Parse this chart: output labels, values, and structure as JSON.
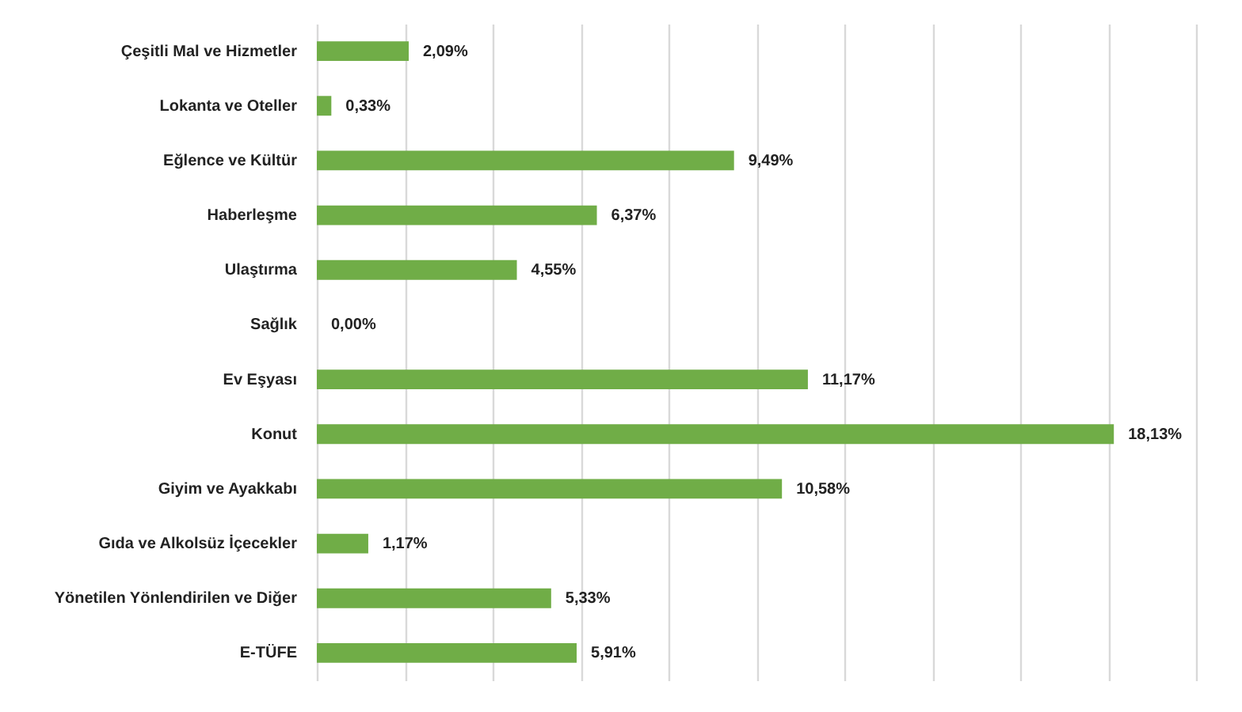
{
  "chart_data": {
    "type": "bar",
    "orientation": "horizontal",
    "categories": [
      "Çeşitli Mal ve Hizmetler",
      "Lokanta ve Oteller",
      "Eğlence ve Kültür",
      "Haberleşme",
      "Ulaştırma",
      "Sağlık",
      "Ev Eşyası",
      "Konut",
      "Giyim ve Ayakkabı",
      "Gıda ve Alkolsüz İçecekler",
      "Yönetilen Yönlendirilen ve Diğer",
      "E-TÜFE"
    ],
    "values": [
      2.09,
      0.33,
      9.49,
      6.37,
      4.55,
      0.0,
      11.17,
      18.13,
      10.58,
      1.17,
      5.33,
      5.91
    ],
    "value_labels": [
      "2,09%",
      "0,33%",
      "9,49%",
      "6,37%",
      "4,55%",
      "0,00%",
      "11,17%",
      "18,13%",
      "10,58%",
      "1,17%",
      "5,33%",
      "5,91%"
    ],
    "color": "#70ad47",
    "xlim": [
      0,
      20
    ],
    "xticks": [
      {
        "value": 0,
        "label": null
      },
      {
        "value": 2,
        "label": null
      },
      {
        "value": 4,
        "label": null
      },
      {
        "value": 6,
        "label": null
      },
      {
        "value": 8,
        "label": null
      },
      {
        "value": 10,
        "label": null
      },
      {
        "value": 12,
        "label": null
      },
      {
        "value": 14,
        "label": null
      },
      {
        "value": 16,
        "label": null
      },
      {
        "value": 18,
        "label": null
      },
      {
        "value": 20,
        "label": null
      }
    ],
    "grid": "x",
    "tick_labels": "y"
  }
}
